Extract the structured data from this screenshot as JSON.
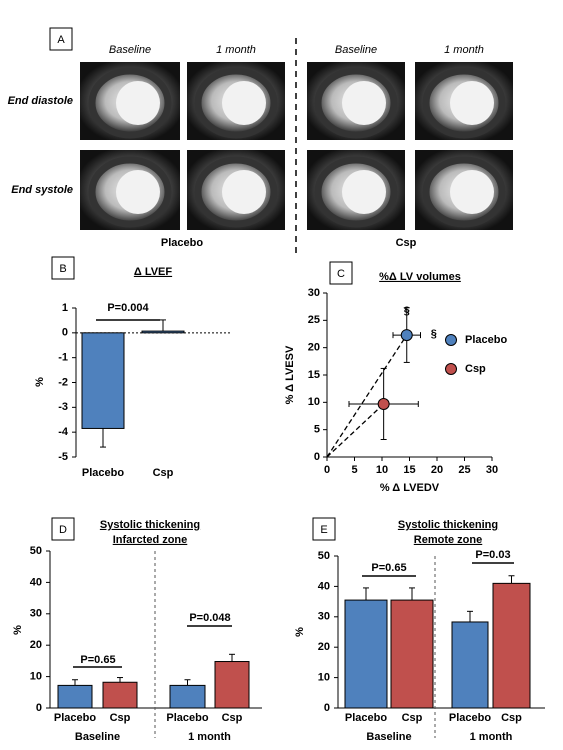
{
  "panel_a": {
    "label": "A",
    "col_labels": [
      "Baseline",
      "1 month",
      "Baseline",
      "1 month"
    ],
    "row_labels": [
      "End diastole",
      "End systole"
    ],
    "group_labels": [
      "Placebo",
      "Csp"
    ]
  },
  "chart_data": [
    {
      "type": "bar",
      "label": "B",
      "title": "Δ LVEF",
      "ylabel": "%",
      "categories": [
        "Placebo",
        "Csp"
      ],
      "values": [
        -3.85,
        0.07
      ],
      "errors": [
        0.75,
        0.45
      ],
      "color": "#4f81bd",
      "ylim": [
        -5,
        1
      ],
      "yticks": [
        -5,
        -4,
        -3,
        -2,
        -1,
        0,
        1
      ],
      "annotations": [
        "P=0.004"
      ]
    },
    {
      "type": "scatter",
      "label": "C",
      "title": "%Δ LV volumes",
      "xlabel": "% Δ LVEDV",
      "ylabel": "% Δ LVESV",
      "xlim": [
        0,
        30
      ],
      "ylim": [
        0,
        30
      ],
      "xticks": [
        0,
        5,
        10,
        15,
        20,
        25,
        30
      ],
      "yticks": [
        0,
        5,
        10,
        15,
        20,
        25,
        30
      ],
      "legend": "right",
      "series": [
        {
          "name": "Placebo",
          "color": "#4f81bd",
          "x": [
            14.5
          ],
          "values": [
            22.3
          ],
          "xerr": [
            2.5
          ],
          "yerr": [
            5
          ]
        },
        {
          "name": "Csp",
          "color": "#c0504d",
          "x": [
            10.3
          ],
          "values": [
            9.7
          ],
          "xerr": [
            6.3
          ],
          "yerr": [
            6.5
          ]
        }
      ],
      "annotations": [
        "§",
        "§"
      ]
    },
    {
      "type": "bar",
      "label": "D",
      "title": "Systolic thickening",
      "subtitle": "Infarcted zone",
      "ylabel": "%",
      "categories": [
        "Baseline",
        "1 month"
      ],
      "ylim": [
        0,
        50
      ],
      "yticks": [
        0,
        10,
        20,
        30,
        40,
        50
      ],
      "series": [
        {
          "name": "Placebo",
          "color": "#4f81bd",
          "values": [
            7.2,
            7.2
          ],
          "errors": [
            1.8,
            1.8
          ]
        },
        {
          "name": "Csp",
          "color": "#c0504d",
          "values": [
            8.2,
            14.8
          ],
          "errors": [
            1.5,
            2.3
          ]
        }
      ],
      "annotations": [
        "P=0.65",
        "P=0.048"
      ]
    },
    {
      "type": "bar",
      "label": "E",
      "title": "Systolic thickening",
      "subtitle": "Remote zone",
      "ylabel": "%",
      "categories": [
        "Baseline",
        "1 month"
      ],
      "ylim": [
        0,
        50
      ],
      "yticks": [
        0,
        10,
        20,
        30,
        40,
        50
      ],
      "series": [
        {
          "name": "Placebo",
          "color": "#4f81bd",
          "values": [
            35.5,
            28.3
          ],
          "errors": [
            4,
            3.5
          ]
        },
        {
          "name": "Csp",
          "color": "#c0504d",
          "values": [
            35.5,
            41
          ],
          "errors": [
            4,
            2.5
          ]
        }
      ],
      "annotations": [
        "P=0.65",
        "P=0.03"
      ]
    }
  ]
}
